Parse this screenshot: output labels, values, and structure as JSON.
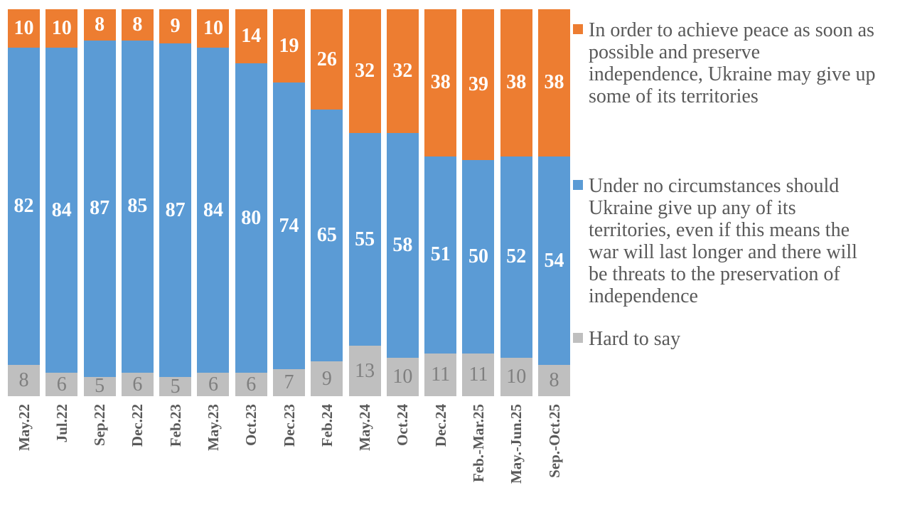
{
  "chart_data": {
    "type": "bar",
    "stacked": true,
    "percent_stacked": true,
    "grid": false,
    "legend_position": "right",
    "ylim": [
      0,
      100
    ],
    "categories": [
      "May.22",
      "Jul.22",
      "Sep.22",
      "Dec.22",
      "Feb.23",
      "May.23",
      "Oct.23",
      "Dec.23",
      "Feb.24",
      "May.24",
      "Oct.24",
      "Dec.24",
      "Feb.-Mar.25",
      "May.-Jun.25",
      "Sep.-Oct.25"
    ],
    "series": [
      {
        "name": "In order to achieve peace as soon as\npossible and preserve\nindependence, Ukraine may give up\nsome of its territories",
        "color": "#ED7D31",
        "label_color": "#FFFFFF",
        "label_bold": true,
        "values": [
          10,
          10,
          8,
          8,
          9,
          10,
          14,
          19,
          26,
          32,
          32,
          38,
          39,
          38,
          38
        ]
      },
      {
        "name": "Under no circumstances should\nUkraine give up any of its\nterritories, even if this means the\nwar will last longer and there will\nbe threats to the preservation of\nindependence",
        "color": "#5B9BD5",
        "label_color": "#FFFFFF",
        "label_bold": true,
        "values": [
          82,
          84,
          87,
          85,
          87,
          84,
          80,
          74,
          65,
          55,
          58,
          51,
          50,
          52,
          54
        ]
      },
      {
        "name": "Hard to say",
        "color": "#BFBFBF",
        "label_color": "#7F7F7F",
        "label_bold": false,
        "values": [
          8,
          6,
          5,
          6,
          5,
          6,
          6,
          7,
          9,
          13,
          10,
          11,
          11,
          10,
          8
        ]
      }
    ],
    "axis_label_color": "#595959",
    "legend_text_color": "#595959"
  }
}
